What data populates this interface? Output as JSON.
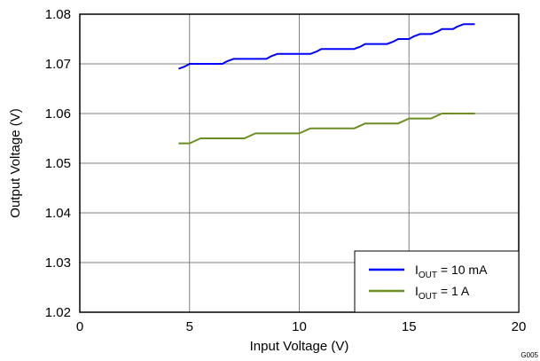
{
  "chart_data": {
    "type": "line",
    "xlabel": "Input Voltage (V)",
    "ylabel": "Output Voltage (V)",
    "xlim": [
      0,
      20
    ],
    "ylim": [
      1.02,
      1.08
    ],
    "x_ticks": [
      0,
      5,
      10,
      15,
      20
    ],
    "x_tick_labels": [
      "0",
      "5",
      "10",
      "15",
      "20"
    ],
    "y_ticks": [
      1.02,
      1.03,
      1.04,
      1.05,
      1.06,
      1.07,
      1.08
    ],
    "y_tick_labels": [
      "1.02",
      "1.03",
      "1.04",
      "1.05",
      "1.06",
      "1.07",
      "1.08"
    ],
    "grid": true,
    "legend_position": "bottom-right",
    "figure_id": "G005",
    "series": [
      {
        "legend": {
          "prefix": "I",
          "subscript": "OUT",
          "suffix": " = 10 mA"
        },
        "color": "#0000ff",
        "x": [
          4.5,
          4.8,
          5.0,
          5.5,
          6.0,
          6.5,
          6.7,
          7.0,
          7.5,
          8.0,
          8.5,
          8.7,
          9.0,
          9.5,
          10.0,
          10.5,
          10.8,
          11.0,
          11.5,
          12.0,
          12.5,
          12.8,
          13.0,
          13.5,
          14.0,
          14.3,
          14.5,
          15.0,
          15.2,
          15.5,
          16.0,
          16.3,
          16.5,
          17.0,
          17.2,
          17.5,
          18.0
        ],
        "y": [
          1.069,
          1.0695,
          1.07,
          1.07,
          1.07,
          1.07,
          1.0705,
          1.071,
          1.071,
          1.071,
          1.071,
          1.0715,
          1.072,
          1.072,
          1.072,
          1.072,
          1.0725,
          1.073,
          1.073,
          1.073,
          1.073,
          1.0735,
          1.074,
          1.074,
          1.074,
          1.0745,
          1.075,
          1.075,
          1.0755,
          1.076,
          1.076,
          1.0765,
          1.077,
          1.077,
          1.0775,
          1.078,
          1.078
        ]
      },
      {
        "legend": {
          "prefix": "I",
          "subscript": "OUT",
          "suffix": " = 1 A"
        },
        "color": "#6b8e23",
        "x": [
          4.5,
          5.0,
          5.5,
          6.0,
          6.5,
          7.0,
          7.5,
          8.0,
          8.5,
          9.0,
          9.5,
          10.0,
          10.5,
          11.0,
          11.5,
          12.0,
          12.5,
          13.0,
          13.5,
          14.0,
          14.5,
          15.0,
          15.5,
          16.0,
          16.5,
          17.0,
          17.5,
          18.0
        ],
        "y": [
          1.054,
          1.054,
          1.055,
          1.055,
          1.055,
          1.055,
          1.055,
          1.056,
          1.056,
          1.056,
          1.056,
          1.056,
          1.057,
          1.057,
          1.057,
          1.057,
          1.057,
          1.058,
          1.058,
          1.058,
          1.058,
          1.059,
          1.059,
          1.059,
          1.06,
          1.06,
          1.06,
          1.06
        ]
      }
    ]
  }
}
